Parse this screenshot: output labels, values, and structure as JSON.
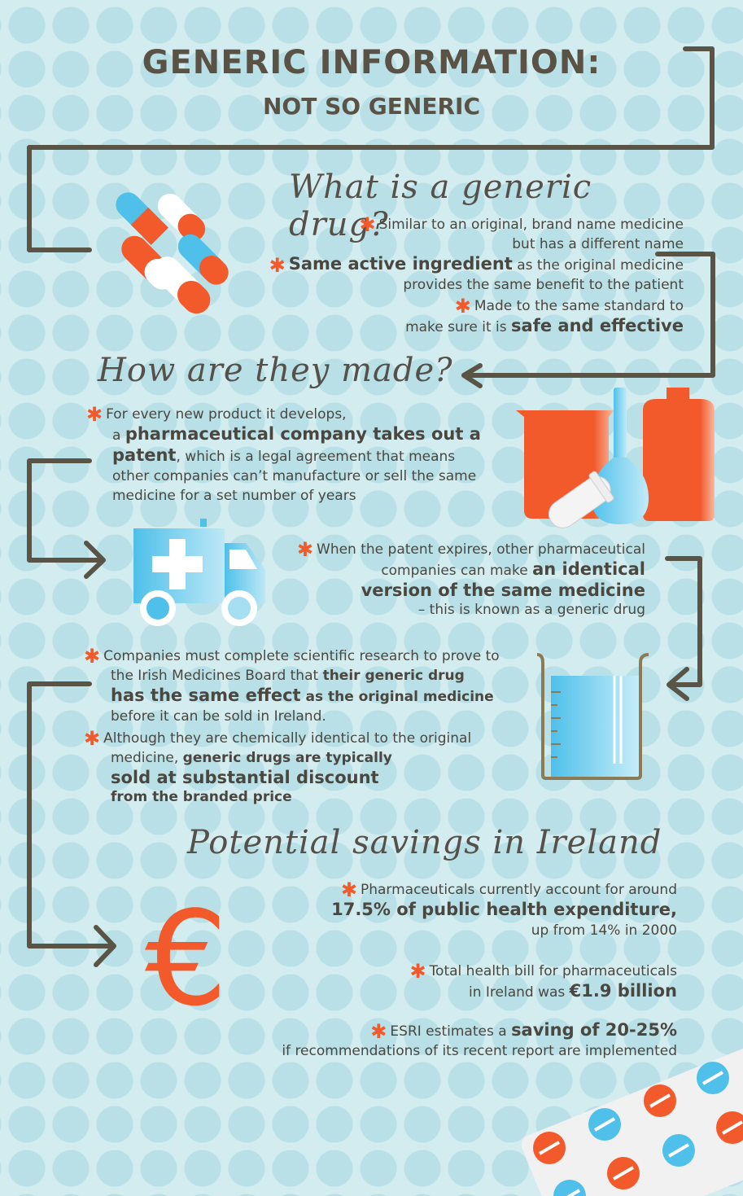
{
  "title": {
    "line1": "GENERIC INFORMATION:",
    "line2": "NOT SO GENERIC"
  },
  "asterisk": "✱",
  "colors": {
    "accent": "#f25a2b",
    "blue": "#4fc0ea",
    "text": "#4a4740",
    "line": "#5a5446"
  },
  "section1": {
    "heading": "What is a generic drug?",
    "b1": {
      "l1": "Similar to an original, brand name medicine",
      "l2": "but has a different name"
    },
    "b2": {
      "bold": "Same active ingredient",
      "l1rest": " as the original medicine",
      "l2": "provides the same benefit to the patient"
    },
    "b3": {
      "l1": "Made to the same standard to",
      "l2pre": "make sure it is ",
      "l2bold": "safe and effective"
    }
  },
  "section2": {
    "heading": "How are they made?",
    "b1": {
      "l1": "For every new product it develops,",
      "l2pre": "a ",
      "l2bold": "pharmaceutical company takes out a",
      "l3bold": "patent",
      "l3rest": ", which is a legal agreement that means",
      "l4": "other companies can’t manufacture or sell the same",
      "l5": "medicine for a set number of years"
    },
    "b2": {
      "l1": "When the patent expires, other pharmaceutical",
      "l2pre": "companies can make ",
      "l2bold": "an identical",
      "l3bold": "version of the same medicine",
      "l4": "– this is known as a generic drug"
    },
    "b3": {
      "l1": "Companies must complete scientific research to prove to",
      "l2pre": "the Irish Medicines Board that ",
      "l2bold": "their generic drug",
      "l3bold": "has the same effect",
      "l3rest": " as the original medicine",
      "l4": "before it can be sold in Ireland."
    },
    "b4": {
      "l1": "Although they  are chemically identical to the original",
      "l2pre": "medicine, ",
      "l2bold": "generic drugs are typically",
      "l3bold": "sold at substantial discount",
      "l4bold": "from the branded price"
    }
  },
  "section3": {
    "heading": "Potential savings in Ireland",
    "b1": {
      "l1": "Pharmaceuticals currently account for around",
      "l2bold": "17.5% of public health expenditure",
      "l2rest": ",",
      "l3": "up from 14% in 2000"
    },
    "b2": {
      "l1": "Total health bill for pharmaceuticals",
      "l2pre": "in Ireland was ",
      "l2bold": "€1.9 billion"
    },
    "b3": {
      "l1pre": "ESRI estimates a ",
      "l1bold": "saving of 20-25%",
      "l2": "if recommendations of its recent report are implemented"
    }
  },
  "euro_symbol": "€"
}
